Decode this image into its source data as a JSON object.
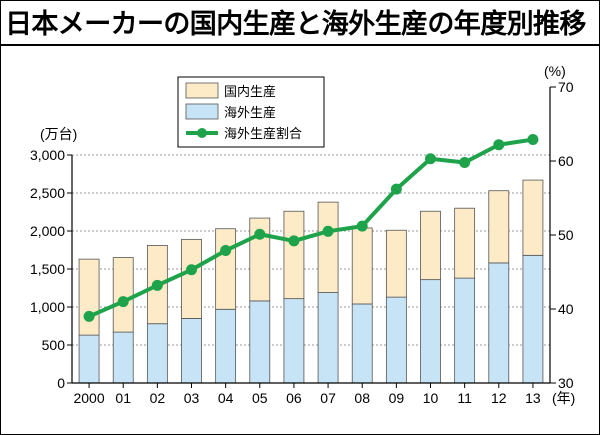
{
  "title": "日本メーカーの国内生産と海外生産の年度別推移",
  "colors": {
    "domestic": "#fdebc8",
    "overseas": "#c7e4f6",
    "ratio_line": "#1ea34a",
    "axis": "#000000",
    "grid": "#999999"
  },
  "chart_data": {
    "type": "bar",
    "stacked": true,
    "title": "日本メーカーの国内生産と海外生産の年度別推移",
    "categories": [
      "2000",
      "01",
      "02",
      "03",
      "04",
      "05",
      "06",
      "07",
      "08",
      "09",
      "10",
      "11",
      "12",
      "13"
    ],
    "x_unit": "(年)",
    "y_left": {
      "unit": "(万台)",
      "range": [
        0,
        3000
      ],
      "ticks": [
        "0",
        "500",
        "1,000",
        "1,500",
        "2,000",
        "2,500",
        "3,000"
      ],
      "tick_values": [
        0,
        500,
        1000,
        1500,
        2000,
        2500,
        3000
      ]
    },
    "y_right": {
      "unit": "(%)",
      "range": [
        30,
        70
      ],
      "ticks": [
        "30",
        "40",
        "50",
        "60",
        "70"
      ],
      "tick_values": [
        30,
        40,
        50,
        60,
        70
      ]
    },
    "series": [
      {
        "name": "海外生産",
        "axis": "left",
        "kind": "bar",
        "values": [
          630,
          670,
          780,
          850,
          970,
          1080,
          1110,
          1190,
          1040,
          1130,
          1360,
          1380,
          1580,
          1680
        ]
      },
      {
        "name": "国内生産",
        "axis": "left",
        "kind": "bar",
        "values": [
          1000,
          980,
          1030,
          1040,
          1060,
          1090,
          1150,
          1190,
          1000,
          880,
          900,
          920,
          950,
          990
        ]
      },
      {
        "name": "海外生産割合",
        "axis": "right",
        "kind": "line",
        "values": [
          39,
          41,
          43.2,
          45.3,
          47.9,
          50.1,
          49.2,
          50.5,
          51.2,
          56.2,
          60.3,
          59.8,
          62.2,
          62.9
        ]
      }
    ],
    "legend": {
      "position": "top-left",
      "items": [
        {
          "label": "国内生産",
          "swatch": "domestic"
        },
        {
          "label": "海外生産",
          "swatch": "overseas"
        },
        {
          "label": "海外生産割合",
          "swatch": "ratio_line"
        }
      ]
    }
  }
}
